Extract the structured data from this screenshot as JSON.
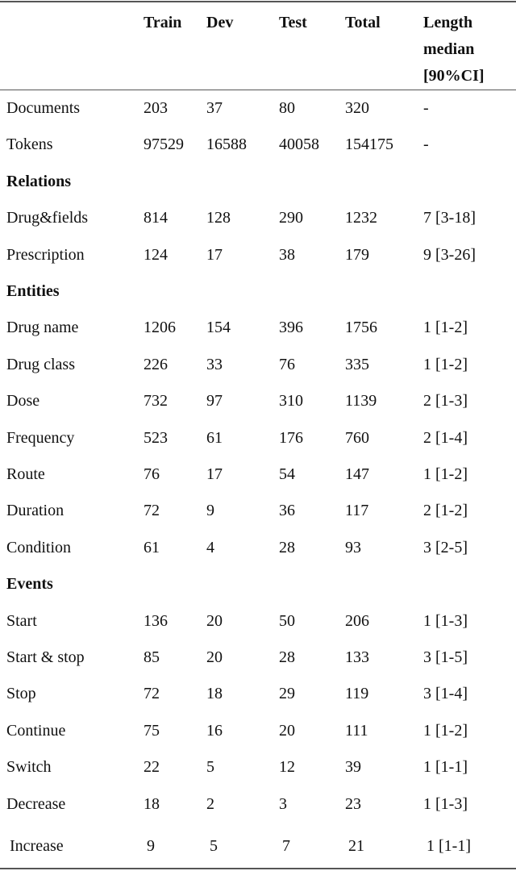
{
  "table": {
    "header": [
      "",
      "Train",
      "Dev",
      "Test",
      "Total",
      "Length median [90%CI]"
    ],
    "rows": [
      [
        "Documents",
        203,
        37,
        80,
        320,
        "-"
      ],
      [
        "Tokens",
        97529,
        16588,
        40058,
        154175,
        "-"
      ],
      [
        "Relations"
      ],
      [
        "Drug&fields",
        814,
        128,
        290,
        1232,
        "7 [3-18]"
      ],
      [
        "Prescription",
        124,
        17,
        38,
        179,
        "9 [3-26]"
      ],
      [
        "Entities"
      ],
      [
        "Drug name",
        1206,
        154,
        396,
        1756,
        "1 [1-2]"
      ],
      [
        "Drug class",
        226,
        33,
        76,
        335,
        "1 [1-2]"
      ],
      [
        "Dose",
        732,
        97,
        310,
        1139,
        "2 [1-3]"
      ],
      [
        "Frequency",
        523,
        61,
        176,
        760,
        "2 [1-4]"
      ],
      [
        "Route",
        76,
        17,
        54,
        147,
        "1 [1-2]"
      ],
      [
        "Duration",
        72,
        9,
        36,
        117,
        "2 [1-2]"
      ],
      [
        "Condition",
        61,
        4,
        28,
        93,
        "3 [2-5]"
      ],
      [
        "Events"
      ],
      [
        "Start",
        136,
        20,
        50,
        206,
        "1 [1-3]"
      ],
      [
        "Start & stop",
        85,
        20,
        28,
        133,
        "3 [1-5]"
      ],
      [
        "Stop",
        72,
        18,
        29,
        119,
        "3 [1-4]"
      ],
      [
        "Continue",
        75,
        16,
        20,
        111,
        "1 [1-2]"
      ],
      [
        "Switch",
        22,
        5,
        12,
        39,
        "1 [1-1]"
      ],
      [
        "Decrease",
        18,
        2,
        3,
        23,
        "1 [1-3]"
      ],
      [
        "Increase",
        9,
        5,
        7,
        21,
        "1 [1-1]"
      ]
    ]
  }
}
